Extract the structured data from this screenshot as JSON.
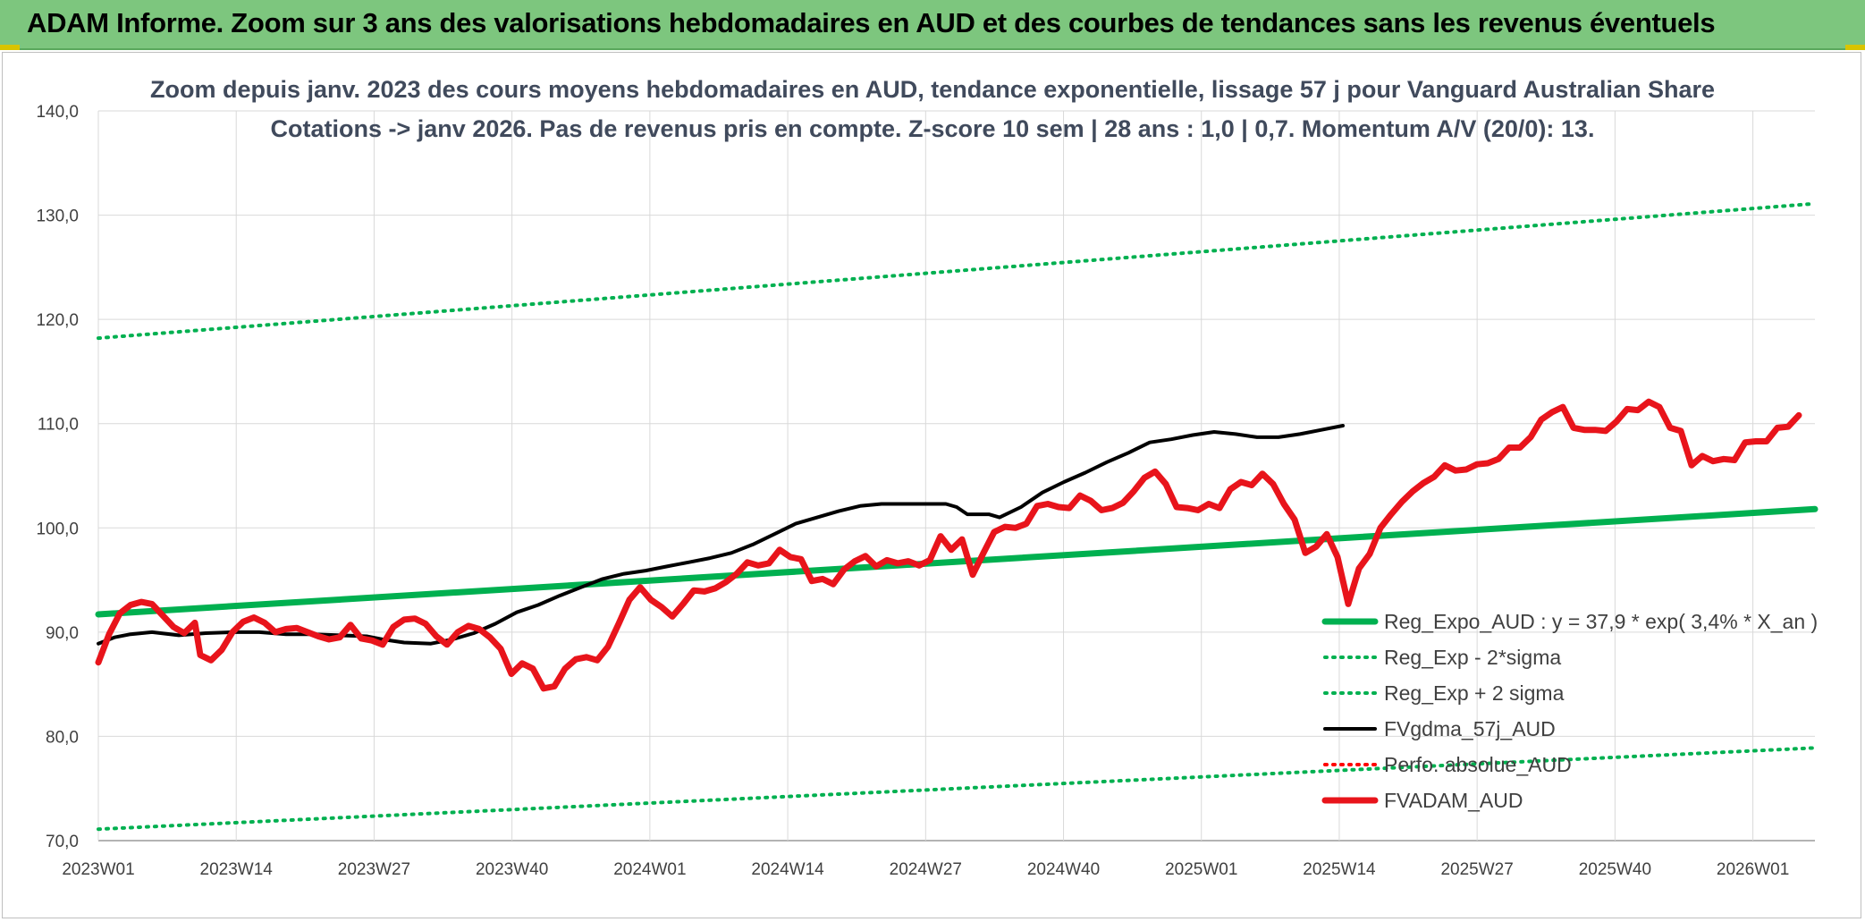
{
  "banner": {
    "title": "ADAM Informe. Zoom sur 3 ans des valorisations hebdomadaires en AUD et des courbes de tendances sans les revenus éventuels"
  },
  "colors": {
    "banner_bg": "#7dc67e",
    "reg_expo": "#00b050",
    "sigma_lines": "#00b050",
    "fvgdma": "#000000",
    "perfo": "#ff0000",
    "fvadam": "#e8141b"
  },
  "chart_data": {
    "type": "line",
    "title_lines": [
      "Zoom depuis janv. 2023 des cours moyens hebdomadaires en AUD, tendance exponentielle, lissage 57 j pour Vanguard Australian Share",
      "Cotations -> janv 2026. Pas de revenus pris en compte. Z-score 10 sem | 28 ans : 1,0 | 0,7. Momentum A/V (20/0): 13."
    ],
    "ylim": [
      70,
      140
    ],
    "yticks": [
      "70,0",
      "80,0",
      "90,0",
      "100,0",
      "110,0",
      "120,0",
      "130,0",
      "140,0"
    ],
    "xticks": [
      "2023W01",
      "2023W14",
      "2023W27",
      "2023W40",
      "2024W01",
      "2024W14",
      "2024W27",
      "2024W40",
      "2025W01",
      "2025W14",
      "2025W27",
      "2025W40",
      "2026W01"
    ],
    "x_count": 161,
    "grid": true,
    "legend_position": "bottom-right",
    "series": [
      {
        "name": "Reg_Expo_AUD : y = 37,9 * exp( 3,4% *  X_an )",
        "style": "solid-thick",
        "color": "#00b050",
        "values": [
          [
            0,
            91.7
          ],
          [
            160,
            101.8
          ]
        ]
      },
      {
        "name": "Reg_Exp - 2*sigma",
        "style": "dotted",
        "color": "#00b050",
        "values": [
          [
            0,
            71.1
          ],
          [
            160,
            78.9
          ]
        ]
      },
      {
        "name": "Reg_Exp + 2 sigma",
        "style": "dotted",
        "color": "#00b050",
        "values": [
          [
            0,
            118.2
          ],
          [
            160,
            131.1
          ]
        ]
      },
      {
        "name": "FVgdma_57j_AUD",
        "style": "solid",
        "color": "#000000",
        "values": [
          [
            0,
            88.9
          ],
          [
            3,
            89.5
          ],
          [
            6,
            89.8
          ],
          [
            10,
            90.0
          ],
          [
            15,
            89.7
          ],
          [
            20,
            89.9
          ],
          [
            25,
            90.0
          ],
          [
            30,
            90.0
          ],
          [
            35,
            89.8
          ],
          [
            40,
            89.8
          ],
          [
            45,
            89.7
          ],
          [
            50,
            89.6
          ],
          [
            53,
            89.3
          ],
          [
            57,
            89.0
          ],
          [
            62,
            88.9
          ],
          [
            66,
            89.3
          ],
          [
            70,
            89.9
          ],
          [
            74,
            90.8
          ],
          [
            78,
            91.9
          ],
          [
            82,
            92.6
          ],
          [
            86,
            93.5
          ],
          [
            90,
            94.3
          ],
          [
            94,
            95.1
          ],
          [
            98,
            95.6
          ],
          [
            102,
            95.9
          ],
          [
            106,
            96.3
          ],
          [
            110,
            96.7
          ],
          [
            114,
            97.1
          ],
          [
            118,
            97.6
          ],
          [
            122,
            98.4
          ],
          [
            126,
            99.4
          ],
          [
            130,
            100.4
          ],
          [
            134,
            101.0
          ],
          [
            138,
            101.6
          ],
          [
            142,
            102.1
          ],
          [
            146,
            102.3
          ],
          [
            150,
            102.3
          ],
          [
            154,
            102.3
          ],
          [
            158,
            102.3
          ],
          [
            160,
            102.0
          ],
          [
            162,
            101.3
          ],
          [
            166,
            101.3
          ],
          [
            168,
            101.0
          ],
          [
            172,
            102.0
          ],
          [
            176,
            103.4
          ],
          [
            180,
            104.4
          ],
          [
            184,
            105.3
          ],
          [
            188,
            106.3
          ],
          [
            192,
            107.2
          ],
          [
            196,
            108.2
          ],
          [
            200,
            108.5
          ],
          [
            204,
            108.9
          ],
          [
            208,
            109.2
          ],
          [
            212,
            109.0
          ],
          [
            216,
            108.7
          ],
          [
            220,
            108.7
          ],
          [
            224,
            109.0
          ],
          [
            228,
            109.4
          ],
          [
            232,
            109.8
          ]
        ]
      },
      {
        "name": "Perfo. absolue_AUD",
        "style": "dotted",
        "color": "#ff0000",
        "values": []
      },
      {
        "name": "FVADAM_AUD",
        "style": "solid-thick",
        "color": "#e8141b",
        "values": [
          [
            0,
            87.1
          ],
          [
            2,
            89.8
          ],
          [
            4,
            91.8
          ],
          [
            6,
            92.6
          ],
          [
            8,
            92.9
          ],
          [
            10,
            92.7
          ],
          [
            12,
            91.6
          ],
          [
            14,
            90.5
          ],
          [
            16,
            89.9
          ],
          [
            18,
            90.9
          ],
          [
            19,
            87.8
          ],
          [
            21,
            87.3
          ],
          [
            23,
            88.3
          ],
          [
            25,
            90.0
          ],
          [
            27,
            91.0
          ],
          [
            29,
            91.4
          ],
          [
            31,
            90.9
          ],
          [
            33,
            90.0
          ],
          [
            35,
            90.3
          ],
          [
            37,
            90.4
          ],
          [
            39,
            90.0
          ],
          [
            41,
            89.6
          ],
          [
            43,
            89.3
          ],
          [
            45,
            89.5
          ],
          [
            47,
            90.7
          ],
          [
            49,
            89.4
          ],
          [
            51,
            89.2
          ],
          [
            53,
            88.8
          ],
          [
            55,
            90.5
          ],
          [
            57,
            91.2
          ],
          [
            59,
            91.3
          ],
          [
            61,
            90.8
          ],
          [
            63,
            89.6
          ],
          [
            65,
            88.8
          ],
          [
            67,
            90.0
          ],
          [
            69,
            90.6
          ],
          [
            71,
            90.3
          ],
          [
            73,
            89.5
          ],
          [
            75,
            88.4
          ],
          [
            77,
            86.0
          ],
          [
            79,
            87.0
          ],
          [
            81,
            86.5
          ],
          [
            83,
            84.6
          ],
          [
            85,
            84.8
          ],
          [
            87,
            86.5
          ],
          [
            89,
            87.4
          ],
          [
            91,
            87.6
          ],
          [
            93,
            87.3
          ],
          [
            95,
            88.6
          ],
          [
            97,
            90.8
          ],
          [
            99,
            93.1
          ],
          [
            101,
            94.3
          ],
          [
            103,
            93.1
          ],
          [
            105,
            92.4
          ],
          [
            107,
            91.5
          ],
          [
            109,
            92.7
          ],
          [
            111,
            94.0
          ],
          [
            113,
            93.9
          ],
          [
            115,
            94.2
          ],
          [
            117,
            94.8
          ],
          [
            119,
            95.6
          ],
          [
            121,
            96.7
          ],
          [
            123,
            96.4
          ],
          [
            125,
            96.6
          ],
          [
            127,
            97.9
          ],
          [
            129,
            97.2
          ],
          [
            131,
            97.0
          ],
          [
            133,
            94.9
          ],
          [
            135,
            95.1
          ],
          [
            137,
            94.6
          ],
          [
            139,
            96.0
          ],
          [
            141,
            96.8
          ],
          [
            143,
            97.3
          ],
          [
            145,
            96.3
          ],
          [
            147,
            96.9
          ],
          [
            149,
            96.6
          ],
          [
            151,
            96.8
          ],
          [
            153,
            96.4
          ],
          [
            155,
            96.9
          ],
          [
            157,
            99.2
          ],
          [
            159,
            97.9
          ],
          [
            161,
            98.9
          ],
          [
            163,
            95.5
          ],
          [
            165,
            97.6
          ],
          [
            167,
            99.6
          ],
          [
            169,
            100.1
          ],
          [
            171,
            100.0
          ],
          [
            173,
            100.4
          ],
          [
            175,
            102.1
          ],
          [
            177,
            102.3
          ],
          [
            179,
            102.0
          ],
          [
            181,
            101.9
          ],
          [
            183,
            103.1
          ],
          [
            185,
            102.6
          ],
          [
            187,
            101.7
          ],
          [
            189,
            101.9
          ],
          [
            191,
            102.4
          ],
          [
            193,
            103.5
          ],
          [
            195,
            104.8
          ],
          [
            197,
            105.4
          ],
          [
            199,
            104.2
          ],
          [
            201,
            102.0
          ],
          [
            203,
            101.9
          ],
          [
            205,
            101.7
          ],
          [
            207,
            102.3
          ],
          [
            209,
            101.9
          ],
          [
            211,
            103.7
          ],
          [
            213,
            104.4
          ],
          [
            215,
            104.1
          ],
          [
            217,
            105.2
          ],
          [
            219,
            104.2
          ],
          [
            221,
            102.3
          ],
          [
            223,
            100.8
          ],
          [
            225,
            97.6
          ],
          [
            227,
            98.2
          ],
          [
            229,
            99.4
          ],
          [
            231,
            97.2
          ],
          [
            233,
            92.7
          ],
          [
            235,
            96.1
          ],
          [
            237,
            97.5
          ],
          [
            239,
            100.0
          ],
          [
            241,
            101.3
          ],
          [
            243,
            102.5
          ],
          [
            245,
            103.5
          ],
          [
            247,
            104.3
          ],
          [
            249,
            104.9
          ],
          [
            251,
            106.0
          ],
          [
            253,
            105.5
          ],
          [
            255,
            105.6
          ],
          [
            257,
            106.1
          ],
          [
            259,
            106.2
          ],
          [
            261,
            106.6
          ],
          [
            263,
            107.7
          ],
          [
            265,
            107.7
          ],
          [
            267,
            108.7
          ],
          [
            269,
            110.4
          ],
          [
            271,
            111.1
          ],
          [
            273,
            111.6
          ],
          [
            275,
            109.6
          ],
          [
            277,
            109.4
          ],
          [
            279,
            109.4
          ],
          [
            281,
            109.3
          ],
          [
            283,
            110.2
          ],
          [
            285,
            111.4
          ],
          [
            287,
            111.3
          ],
          [
            289,
            112.1
          ],
          [
            291,
            111.6
          ],
          [
            293,
            109.6
          ],
          [
            295,
            109.3
          ],
          [
            297,
            106.0
          ],
          [
            299,
            106.9
          ],
          [
            301,
            106.4
          ],
          [
            303,
            106.6
          ],
          [
            305,
            106.5
          ],
          [
            307,
            108.2
          ],
          [
            309,
            108.3
          ],
          [
            311,
            108.3
          ],
          [
            313,
            109.6
          ],
          [
            315,
            109.7
          ],
          [
            317,
            110.8
          ]
        ]
      }
    ]
  }
}
